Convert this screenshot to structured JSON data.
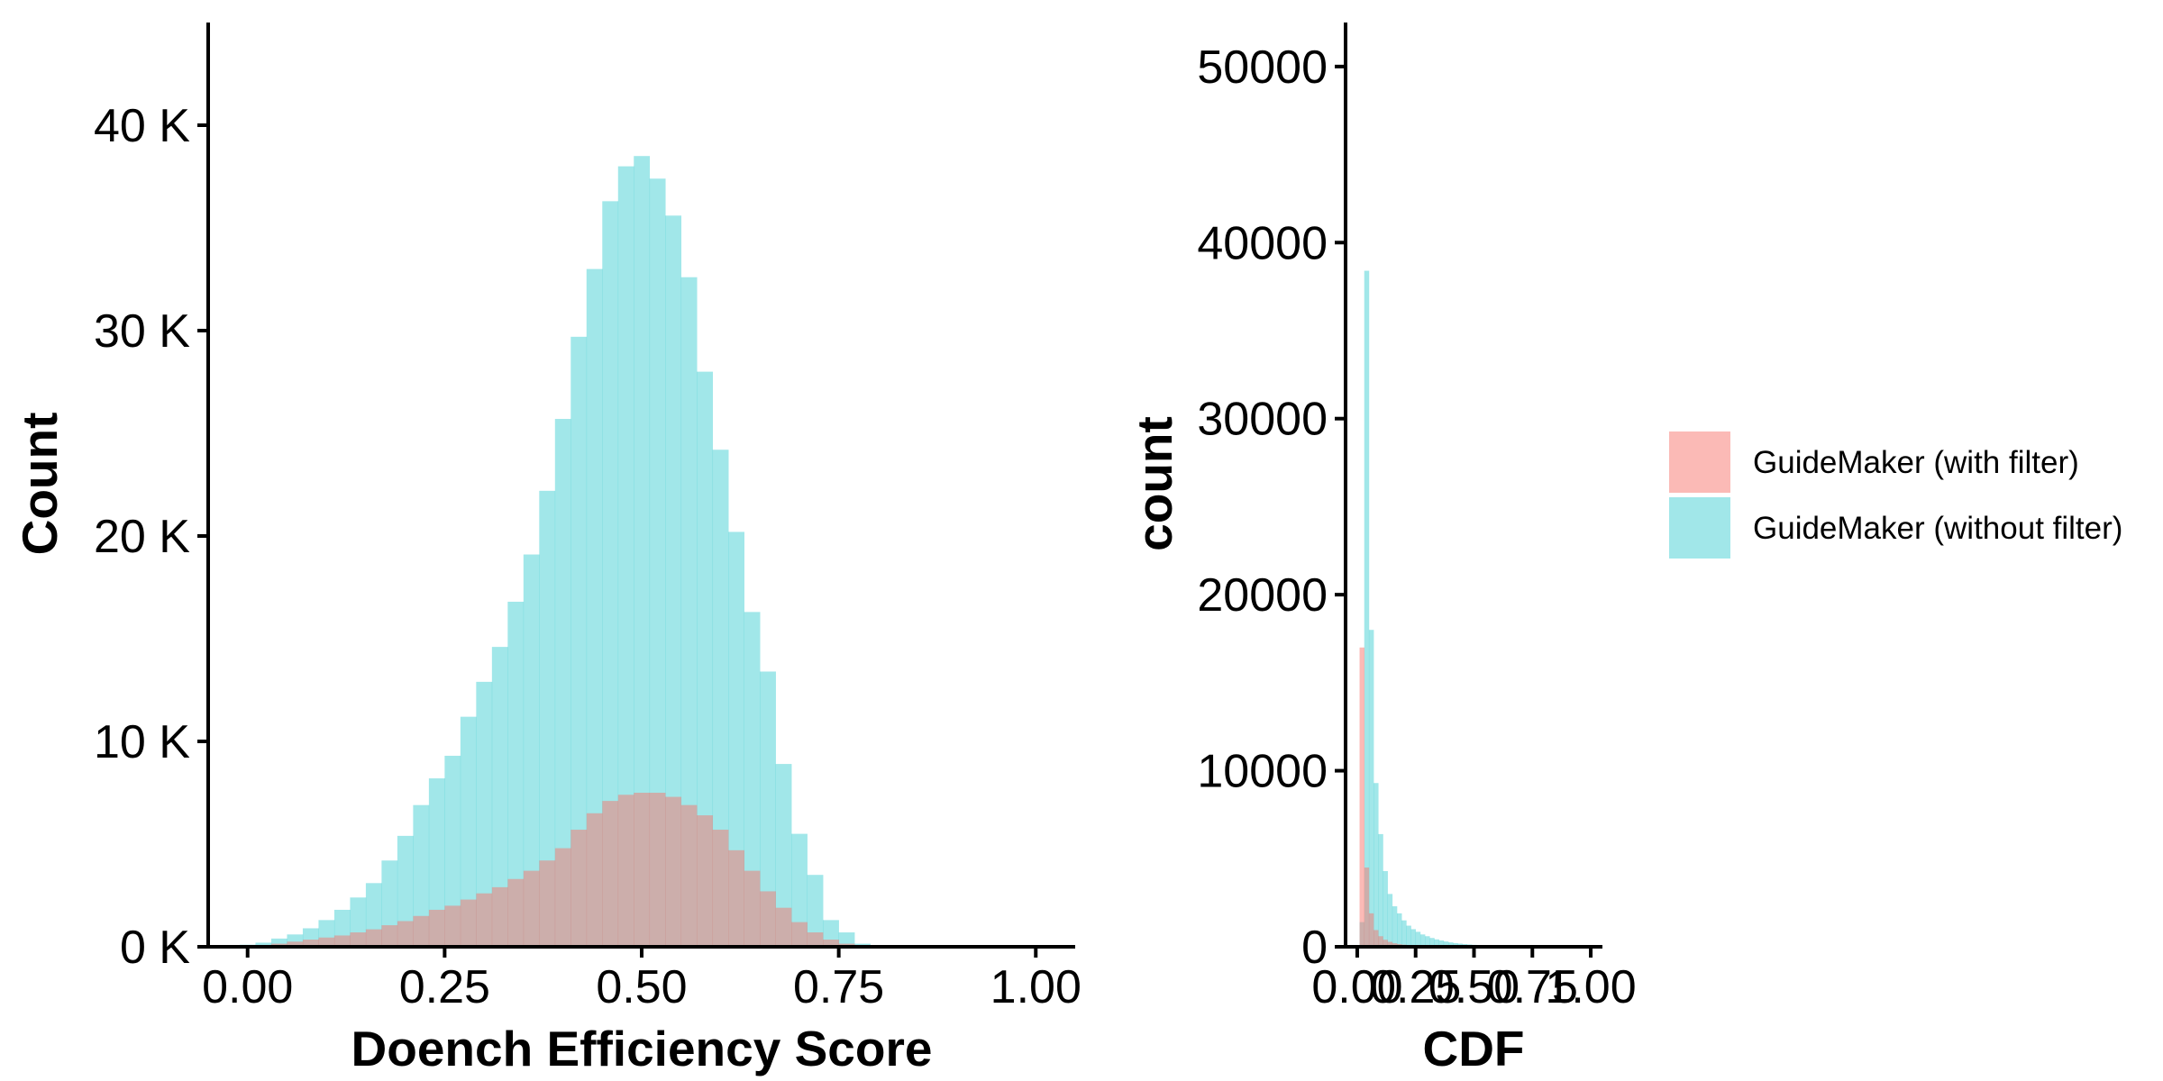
{
  "colors": {
    "with_filter": "#F8766D",
    "without_filter": "#00BFC4"
  },
  "legend": {
    "items": [
      {
        "label": "GuideMaker (with filter)",
        "color": "#F8766D"
      },
      {
        "label": "GuideMaker (without filter)",
        "color": "#00BFC4"
      }
    ]
  },
  "chart_data": [
    {
      "type": "bar",
      "subtype": "histogram",
      "xlabel": "Doench Efficiency Score",
      "ylabel": "Count",
      "xlim": [
        -0.05,
        1.05
      ],
      "ylim": [
        0,
        45000
      ],
      "xticks": [
        0.0,
        0.25,
        0.5,
        0.75,
        1.0
      ],
      "xtick_labels": [
        "0.00",
        "0.25",
        "0.50",
        "0.75",
        "1.00"
      ],
      "yticks": [
        0,
        10000,
        20000,
        30000,
        40000
      ],
      "ytick_labels": [
        "0 K",
        "10 K",
        "20 K",
        "30 K",
        "40 K"
      ],
      "grid": false,
      "bin_width": 0.02,
      "x": [
        0.0,
        0.02,
        0.04,
        0.06,
        0.08,
        0.1,
        0.12,
        0.14,
        0.16,
        0.18,
        0.2,
        0.22,
        0.24,
        0.26,
        0.28,
        0.3,
        0.32,
        0.34,
        0.36,
        0.38,
        0.4,
        0.42,
        0.44,
        0.46,
        0.48,
        0.5,
        0.52,
        0.54,
        0.56,
        0.58,
        0.6,
        0.62,
        0.64,
        0.66,
        0.68,
        0.7,
        0.72,
        0.74,
        0.76,
        0.78
      ],
      "series": [
        {
          "name": "GuideMaker (without filter)",
          "color": "#00BFC4",
          "values": [
            100,
            200,
            400,
            600,
            900,
            1300,
            1800,
            2400,
            3100,
            4200,
            5400,
            6900,
            8200,
            9300,
            11200,
            12900,
            14600,
            16800,
            19100,
            22200,
            25700,
            29700,
            33000,
            36300,
            38000,
            38500,
            37400,
            35600,
            32600,
            28000,
            24200,
            20200,
            16300,
            13400,
            8900,
            5500,
            3500,
            1300,
            700,
            150
          ]
        },
        {
          "name": "GuideMaker (with filter)",
          "color": "#F8766D",
          "values": [
            30,
            60,
            150,
            250,
            350,
            450,
            550,
            700,
            850,
            1050,
            1250,
            1500,
            1800,
            2000,
            2300,
            2600,
            2900,
            3300,
            3700,
            4200,
            4800,
            5700,
            6500,
            7100,
            7400,
            7500,
            7500,
            7300,
            6900,
            6400,
            5700,
            4700,
            3700,
            2700,
            1900,
            1200,
            700,
            350,
            150,
            50
          ]
        }
      ]
    },
    {
      "type": "bar",
      "subtype": "histogram",
      "xlabel": "CDF",
      "ylabel": "count",
      "xlim": [
        -0.05,
        1.05
      ],
      "ylim": [
        0,
        52500
      ],
      "xticks": [
        0.0,
        0.25,
        0.5,
        0.75,
        1.0
      ],
      "xtick_labels": [
        "0.00",
        "0.25",
        "0.50",
        "0.75",
        "1.00"
      ],
      "yticks": [
        0,
        10000,
        20000,
        30000,
        40000,
        50000
      ],
      "ytick_labels": [
        "0",
        "10000",
        "20000",
        "30000",
        "40000",
        "50000"
      ],
      "grid": false,
      "bin_width": 0.02,
      "x": [
        0.02,
        0.04,
        0.06,
        0.08,
        0.1,
        0.12,
        0.14,
        0.16,
        0.18,
        0.2,
        0.22,
        0.24,
        0.26,
        0.28,
        0.3,
        0.32,
        0.34,
        0.36,
        0.38,
        0.4,
        0.42,
        0.44,
        0.46,
        0.48,
        0.5,
        0.52,
        0.54,
        0.56,
        0.58,
        0.6,
        0.62,
        0.64,
        0.66,
        0.68,
        0.7,
        0.72,
        0.74,
        0.76,
        0.78,
        0.8,
        0.82,
        0.84,
        0.86,
        0.88,
        0.9,
        0.92,
        0.94,
        0.96,
        0.98,
        1.0
      ],
      "series": [
        {
          "name": "GuideMaker (without filter)",
          "color": "#00BFC4",
          "values": [
            1400,
            38400,
            18000,
            9300,
            6400,
            4300,
            3000,
            2300,
            1900,
            1500,
            1200,
            1000,
            850,
            700,
            600,
            500,
            420,
            360,
            300,
            250,
            210,
            180,
            150,
            130,
            110,
            95,
            80,
            70,
            60,
            50,
            45,
            40,
            35,
            30,
            28,
            25,
            22,
            20,
            18,
            16,
            14,
            12,
            10,
            9,
            8,
            7,
            6,
            5,
            4,
            3
          ]
        },
        {
          "name": "GuideMaker (with filter)",
          "color": "#F8766D",
          "values": [
            17000,
            4500,
            1900,
            950,
            600,
            400,
            280,
            200,
            150,
            120,
            90,
            70,
            60,
            50,
            40,
            30,
            25,
            20,
            15,
            12,
            10,
            8,
            6,
            5,
            4,
            3,
            3,
            2,
            2,
            2,
            1,
            1,
            1,
            1,
            1,
            1,
            1,
            0,
            0,
            0,
            0,
            0,
            0,
            0,
            0,
            0,
            0,
            0,
            0,
            0
          ]
        }
      ]
    }
  ]
}
